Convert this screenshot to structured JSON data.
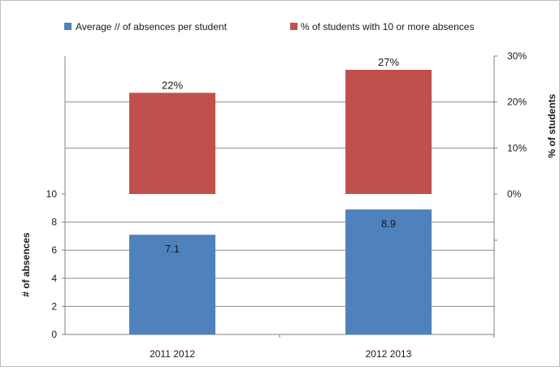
{
  "chart_data": {
    "type": "bar",
    "categories": [
      "2011 2012",
      "2012 2013"
    ],
    "legend_position": "top",
    "grid": true,
    "panels": [
      {
        "name": "Average // of absences per student",
        "color": "#4f81bd",
        "values": [
          7.1,
          8.9
        ],
        "value_labels": [
          "7.1",
          "8.9"
        ],
        "ylabel": "# of absences",
        "ylim": [
          0,
          10
        ],
        "ticks": [
          "0",
          "2",
          "4",
          "6",
          "8",
          "10"
        ],
        "axis_side": "left"
      },
      {
        "name": "% of students with 10 or more absences",
        "color": "#c0504d",
        "values": [
          22,
          27
        ],
        "value_labels": [
          "22%",
          "27%"
        ],
        "ylabel": "% of students",
        "ylim": [
          0,
          30
        ],
        "ticks": [
          "0%",
          "10%",
          "20%",
          "30%"
        ],
        "axis_side": "right"
      }
    ]
  }
}
